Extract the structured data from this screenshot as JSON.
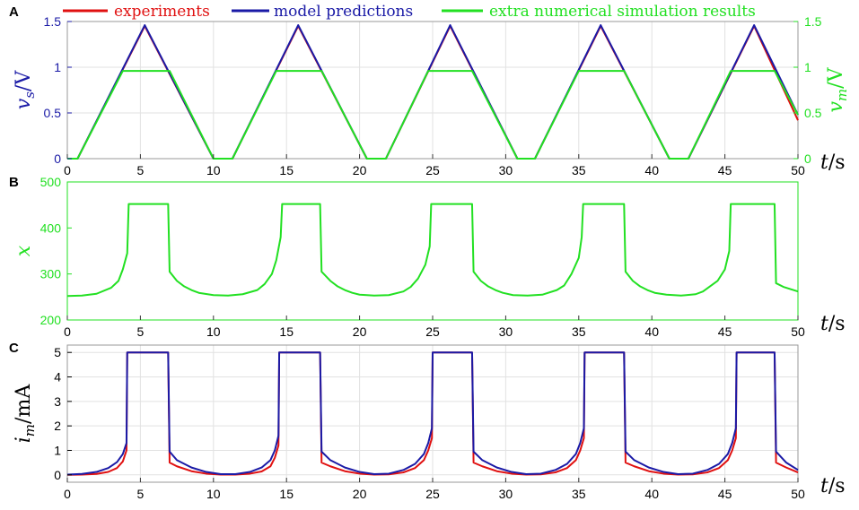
{
  "legend": [
    {
      "label": "experiments",
      "color": "#e01010"
    },
    {
      "label": "model predictions",
      "color": "#1a1aa6"
    },
    {
      "label": "extra numerical simulation results",
      "color": "#22e022"
    }
  ],
  "chart_data": [
    {
      "panel": "A",
      "type": "line",
      "xlabel": "t/s",
      "ylabel": "v_s/V",
      "ylabel2": "v_m/V",
      "xlim": [
        0,
        50
      ],
      "ylim": [
        0,
        1.5
      ],
      "ylim2": [
        0,
        1.5
      ],
      "xticks": [
        0,
        5,
        10,
        15,
        20,
        25,
        30,
        35,
        40,
        45,
        50
      ],
      "yticks": [
        0,
        0.5,
        1,
        1.5
      ],
      "ytick_labels": [
        "0",
        "0.5",
        "1",
        "1.5"
      ],
      "yticks2": [
        0,
        0.5,
        1,
        1.5
      ],
      "ytick_labels2": [
        "0",
        "0.5",
        "1",
        "1.5"
      ],
      "grid": true,
      "series": [
        {
          "name": "experiments",
          "color": "#e01010",
          "x": [
            0,
            0.7,
            5.3,
            10,
            11.3,
            15.8,
            20.5,
            21.8,
            26.2,
            30.8,
            32.0,
            36.5,
            41.2,
            42.5,
            47.0,
            50
          ],
          "y": [
            0,
            0,
            1.45,
            0,
            0,
            1.45,
            0,
            0,
            1.45,
            0,
            0,
            1.45,
            0,
            0,
            1.45,
            0.42
          ]
        },
        {
          "name": "model predictions",
          "color": "#1a1aa6",
          "x": [
            0,
            0.7,
            5.3,
            10,
            11.3,
            15.8,
            20.5,
            21.8,
            26.2,
            30.8,
            32.0,
            36.5,
            41.2,
            42.5,
            47.0,
            50
          ],
          "y": [
            0,
            0,
            1.46,
            0,
            0,
            1.46,
            0,
            0,
            1.46,
            0,
            0,
            1.46,
            0,
            0,
            1.46,
            0.48
          ]
        },
        {
          "name": "extra numerical simulation results",
          "color": "#22e022",
          "x": [
            0,
            0.7,
            3.8,
            7.0,
            10,
            11.3,
            14.3,
            17.4,
            20.5,
            21.8,
            24.7,
            27.7,
            30.8,
            32.0,
            35.0,
            38.1,
            41.2,
            42.5,
            45.4,
            48.4,
            50
          ],
          "y": [
            0,
            0,
            0.96,
            0.96,
            0,
            0,
            0.96,
            0.96,
            0,
            0,
            0.96,
            0.96,
            0,
            0,
            0.96,
            0.96,
            0,
            0,
            0.96,
            0.96,
            0.48
          ]
        }
      ]
    },
    {
      "panel": "B",
      "type": "line",
      "xlabel": "t/s",
      "ylabel": "x",
      "xlim": [
        0,
        50
      ],
      "ylim": [
        200,
        500
      ],
      "xticks": [
        0,
        5,
        10,
        15,
        20,
        25,
        30,
        35,
        40,
        45,
        50
      ],
      "yticks": [
        200,
        300,
        400,
        500
      ],
      "ytick_labels": [
        "200",
        "300",
        "400",
        "500"
      ],
      "grid": false,
      "series": [
        {
          "name": "extra numerical simulation results",
          "color": "#22e022",
          "x": [
            0,
            1,
            2,
            3,
            3.5,
            3.8,
            4.1,
            4.2,
            6.9,
            7.0,
            7.5,
            8,
            8.5,
            9,
            10,
            11,
            12,
            13,
            13.5,
            14.0,
            14.3,
            14.6,
            14.7,
            17.3,
            17.4,
            18,
            18.5,
            19,
            19.5,
            20,
            21,
            22,
            23,
            23.5,
            24.0,
            24.5,
            24.8,
            24.9,
            27.7,
            27.8,
            28.3,
            28.8,
            29.3,
            29.8,
            30.5,
            31.5,
            32.5,
            33.5,
            34.0,
            34.5,
            35.0,
            35.2,
            35.3,
            38.1,
            38.2,
            38.7,
            39.2,
            39.7,
            40.2,
            41,
            42,
            43,
            43.5,
            44.5,
            45.0,
            45.3,
            45.4,
            48.4,
            48.5,
            49,
            50
          ],
          "y": [
            252,
            253,
            257,
            270,
            285,
            310,
            345,
            452,
            452,
            305,
            285,
            273,
            265,
            259,
            254,
            253,
            256,
            265,
            278,
            300,
            330,
            380,
            452,
            452,
            305,
            285,
            273,
            265,
            259,
            255,
            253,
            254,
            262,
            272,
            290,
            320,
            360,
            452,
            452,
            305,
            285,
            273,
            265,
            259,
            254,
            253,
            255,
            265,
            275,
            300,
            335,
            380,
            452,
            452,
            305,
            285,
            273,
            265,
            259,
            255,
            253,
            256,
            262,
            285,
            310,
            350,
            452,
            452,
            280,
            272,
            262
          ]
        }
      ]
    },
    {
      "panel": "C",
      "type": "line",
      "xlabel": "t/s",
      "ylabel": "i_m/mA",
      "xlim": [
        0,
        50
      ],
      "ylim": [
        -0.3,
        5.3
      ],
      "xticks": [
        0,
        5,
        10,
        15,
        20,
        25,
        30,
        35,
        40,
        45,
        50
      ],
      "yticks": [
        0,
        1,
        2,
        3,
        4,
        5
      ],
      "ytick_labels": [
        "0",
        "1",
        "2",
        "3",
        "4",
        "5"
      ],
      "grid": true,
      "series": [
        {
          "name": "experiments",
          "color": "#e01010",
          "x": [
            0,
            1,
            2,
            2.8,
            3.4,
            3.8,
            4.05,
            4.1,
            6.9,
            7.0,
            7.5,
            8.5,
            9.5,
            10.5,
            11.5,
            12.5,
            13.3,
            13.9,
            14.2,
            14.45,
            14.5,
            17.3,
            17.4,
            18,
            19,
            20,
            21,
            22,
            23,
            23.8,
            24.4,
            24.7,
            24.95,
            25.0,
            27.7,
            27.8,
            28.4,
            29.4,
            30.4,
            31.4,
            32.4,
            33.4,
            34.2,
            34.8,
            35.1,
            35.35,
            35.4,
            38.1,
            38.2,
            38.8,
            39.8,
            40.8,
            41.8,
            42.8,
            43.8,
            44.6,
            45.2,
            45.5,
            45.75,
            45.8,
            48.4,
            48.5,
            49.2,
            50
          ],
          "y": [
            0,
            0.01,
            0.04,
            0.12,
            0.28,
            0.55,
            1.0,
            5.0,
            5.0,
            0.5,
            0.35,
            0.15,
            0.05,
            0.01,
            0.01,
            0.05,
            0.14,
            0.35,
            0.7,
            1.2,
            5.0,
            5.0,
            0.5,
            0.35,
            0.15,
            0.05,
            0.01,
            0.02,
            0.1,
            0.28,
            0.6,
            1.0,
            1.5,
            5.0,
            5.0,
            0.5,
            0.35,
            0.15,
            0.05,
            0.01,
            0.02,
            0.1,
            0.28,
            0.6,
            1.0,
            1.5,
            5.0,
            5.0,
            0.5,
            0.35,
            0.15,
            0.05,
            0.01,
            0.02,
            0.1,
            0.28,
            0.6,
            1.0,
            1.5,
            5.0,
            5.0,
            0.5,
            0.3,
            0.1
          ]
        },
        {
          "name": "model predictions",
          "color": "#1a1aa6",
          "x": [
            0,
            1,
            2,
            2.8,
            3.4,
            3.8,
            4.05,
            4.1,
            6.9,
            7.0,
            7.5,
            8.5,
            9.5,
            10.5,
            11.5,
            12.5,
            13.3,
            13.9,
            14.2,
            14.45,
            14.5,
            17.3,
            17.4,
            18,
            19,
            20,
            21,
            22,
            23,
            23.8,
            24.4,
            24.7,
            24.95,
            25.0,
            27.7,
            27.8,
            28.4,
            29.4,
            30.4,
            31.4,
            32.4,
            33.4,
            34.2,
            34.8,
            35.1,
            35.35,
            35.4,
            38.1,
            38.2,
            38.8,
            39.8,
            40.8,
            41.8,
            42.8,
            43.8,
            44.6,
            45.2,
            45.5,
            45.75,
            45.8,
            48.4,
            48.5,
            49.2,
            50
          ],
          "y": [
            0.01,
            0.04,
            0.12,
            0.28,
            0.52,
            0.85,
            1.3,
            5.0,
            5.0,
            0.95,
            0.6,
            0.3,
            0.12,
            0.03,
            0.03,
            0.12,
            0.3,
            0.6,
            1.0,
            1.6,
            5.0,
            5.0,
            0.95,
            0.6,
            0.3,
            0.12,
            0.03,
            0.05,
            0.2,
            0.45,
            0.85,
            1.3,
            1.9,
            5.0,
            5.0,
            0.95,
            0.6,
            0.3,
            0.12,
            0.03,
            0.05,
            0.2,
            0.45,
            0.85,
            1.3,
            1.9,
            5.0,
            5.0,
            0.95,
            0.6,
            0.3,
            0.12,
            0.03,
            0.05,
            0.2,
            0.45,
            0.85,
            1.3,
            1.9,
            5.0,
            5.0,
            0.95,
            0.5,
            0.2
          ]
        }
      ]
    }
  ]
}
